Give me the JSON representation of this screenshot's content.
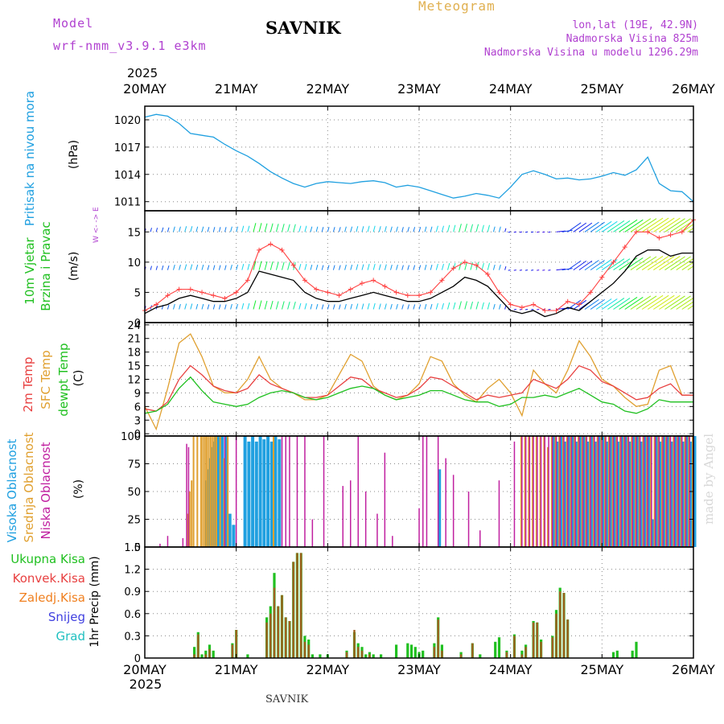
{
  "header": {
    "model_label": "Model",
    "model_name": "wrf-nmm_v3.9.1 e3km",
    "station": "SAVNIK",
    "product": "Meteogram",
    "coords": "lon,lat (19E, 42.9N)",
    "elevation": "Nadmorska Visina 825m",
    "model_elevation": "Nadmorska Visina u modelu 1296.29m",
    "year": "2025",
    "watermark": "made by Angel",
    "footer_station": "SAVNIK"
  },
  "time_axis": {
    "labels": [
      "20MAY",
      "21MAY",
      "22MAY",
      "23MAY",
      "24MAY",
      "25MAY",
      "26MAY"
    ],
    "year_bottom": "2025"
  },
  "colors": {
    "pressure": "#20a0e0",
    "wind_speed": "#000000",
    "gust": "#ff4040",
    "temp2m": "#e84040",
    "sfc_temp": "#e0a030",
    "dewpoint": "#20c020",
    "high_cloud": "#20a0e0",
    "mid_cloud": "#e0a030",
    "low_cloud": "#c020a0",
    "total_precip": "#20c020",
    "conv_precip": "#e84040",
    "frz_precip": "#f08020",
    "snow": "#4040e0",
    "hail": "#20c0c0"
  },
  "chart_data": [
    {
      "type": "line",
      "name": "pressure",
      "title": "Pritisak na nivou mora",
      "ylabel": "(hPa)",
      "ylim": [
        1010,
        1021.5
      ],
      "yticks": [
        1011,
        1014,
        1017,
        1020
      ],
      "hours": [
        0,
        3,
        6,
        9,
        12,
        15,
        18,
        21,
        24,
        27,
        30,
        33,
        36,
        39,
        42,
        45,
        48,
        51,
        54,
        57,
        60,
        63,
        66,
        69,
        72,
        75,
        78,
        81,
        84,
        87,
        90,
        93,
        96,
        99,
        102,
        105,
        108,
        111,
        114,
        117,
        120,
        123,
        126,
        129,
        132,
        135,
        138,
        141,
        144
      ],
      "series": [
        {
          "name": "Pritisak",
          "values": [
            1020.3,
            1020.6,
            1020.4,
            1019.6,
            1018.5,
            1018.3,
            1018.1,
            1017.3,
            1016.6,
            1016.0,
            1015.2,
            1014.3,
            1013.6,
            1013.0,
            1012.6,
            1013.0,
            1013.2,
            1013.1,
            1013.0,
            1013.2,
            1013.3,
            1013.1,
            1012.6,
            1012.8,
            1012.6,
            1012.2,
            1011.8,
            1011.4,
            1011.6,
            1011.9,
            1011.7,
            1011.4,
            1012.6,
            1014.0,
            1014.4,
            1014.0,
            1013.5,
            1013.6,
            1013.4,
            1013.5,
            1013.8,
            1014.2,
            1013.9,
            1014.5,
            1015.9,
            1013.0,
            1012.2,
            1012.1,
            1011.0
          ]
        }
      ]
    },
    {
      "type": "line",
      "name": "wind",
      "title": "10m Vjetar Brzina i Pravac",
      "ylabel": "(m/s)",
      "compass": "W <- -> E",
      "ylim": [
        0,
        18.5
      ],
      "yticks": [
        0,
        5,
        10,
        15
      ],
      "hours": [
        0,
        3,
        6,
        9,
        12,
        15,
        18,
        21,
        24,
        27,
        30,
        33,
        36,
        39,
        42,
        45,
        48,
        51,
        54,
        57,
        60,
        63,
        66,
        69,
        72,
        75,
        78,
        81,
        84,
        87,
        90,
        93,
        96,
        99,
        102,
        105,
        108,
        111,
        114,
        117,
        120,
        123,
        126,
        129,
        132,
        135,
        138,
        141,
        144
      ],
      "series": [
        {
          "name": "Brzina",
          "values": [
            1.5,
            2.5,
            3.0,
            4.0,
            4.5,
            4.0,
            3.5,
            3.5,
            4.0,
            5.0,
            8.5,
            8.0,
            7.5,
            7.0,
            5.0,
            4.0,
            3.5,
            3.5,
            4.0,
            4.5,
            5.0,
            4.5,
            4.0,
            3.5,
            3.5,
            4.0,
            5.0,
            6.0,
            7.5,
            7.0,
            6.0,
            4.0,
            2.0,
            1.5,
            2.0,
            1.0,
            1.5,
            2.5,
            2.0,
            3.5,
            5.0,
            6.5,
            8.5,
            11.0,
            12.0,
            12.0,
            11.0,
            11.5,
            11.5
          ]
        },
        {
          "name": "Udar",
          "values": [
            2.0,
            3.0,
            4.5,
            5.5,
            5.5,
            5.0,
            4.5,
            4.0,
            5.0,
            7.0,
            12.0,
            13.0,
            12.0,
            9.5,
            7.0,
            5.5,
            5.0,
            4.5,
            5.5,
            6.5,
            7.0,
            6.0,
            5.0,
            4.5,
            4.5,
            5.0,
            7.0,
            9.0,
            10.0,
            9.5,
            8.0,
            5.0,
            3.0,
            2.5,
            3.0,
            2.0,
            2.0,
            3.5,
            3.0,
            5.0,
            7.5,
            10.0,
            12.5,
            15.0,
            15.0,
            14.0,
            14.5,
            15.0,
            17.0
          ]
        }
      ]
    },
    {
      "type": "line",
      "name": "temperature",
      "title": "2m Temp / SFC Temp / dewpt Temp",
      "ylabel": "(C)",
      "ylim": [
        -0.5,
        24.5
      ],
      "yticks": [
        0,
        3,
        6,
        9,
        12,
        15,
        18,
        21,
        24
      ],
      "hours": [
        0,
        3,
        6,
        9,
        12,
        15,
        18,
        21,
        24,
        27,
        30,
        33,
        36,
        39,
        42,
        45,
        48,
        51,
        54,
        57,
        60,
        63,
        66,
        69,
        72,
        75,
        78,
        81,
        84,
        87,
        90,
        93,
        96,
        99,
        102,
        105,
        108,
        111,
        114,
        117,
        120,
        123,
        126,
        129,
        132,
        135,
        138,
        141,
        144
      ],
      "series": [
        {
          "name": "2m Temp",
          "values": [
            5.5,
            5.0,
            7.0,
            12.0,
            15.0,
            13.0,
            10.5,
            9.5,
            9.0,
            10.0,
            13.0,
            11.0,
            10.0,
            9.0,
            8.0,
            8.0,
            8.5,
            10.5,
            12.5,
            12.0,
            10.0,
            9.0,
            8.0,
            8.5,
            10.0,
            12.5,
            12.0,
            10.5,
            9.0,
            7.5,
            8.5,
            8.0,
            8.5,
            9.0,
            12.0,
            11.0,
            10.0,
            12.0,
            15.0,
            14.0,
            11.5,
            10.5,
            9.0,
            7.5,
            8.0,
            10.0,
            11.0,
            8.5,
            8.5
          ]
        },
        {
          "name": "SFC Temp",
          "values": [
            6.0,
            1.0,
            10.0,
            20.0,
            22.0,
            17.0,
            10.5,
            9.0,
            9.0,
            12.0,
            17.0,
            12.0,
            10.0,
            9.0,
            7.5,
            7.5,
            8.5,
            13.0,
            17.5,
            16.0,
            10.5,
            8.5,
            7.5,
            8.5,
            11.0,
            17.0,
            16.0,
            11.0,
            8.5,
            7.0,
            10.0,
            12.0,
            9.0,
            4.0,
            14.0,
            11.0,
            9.0,
            14.0,
            20.5,
            17.0,
            12.0,
            10.5,
            8.0,
            6.0,
            6.5,
            14.0,
            15.0,
            8.5,
            8.5
          ]
        },
        {
          "name": "dewpt Temp",
          "values": [
            4.5,
            5.0,
            6.5,
            10.0,
            12.5,
            9.5,
            7.0,
            6.5,
            6.0,
            6.5,
            8.0,
            9.0,
            9.5,
            9.0,
            8.0,
            7.5,
            8.0,
            9.0,
            10.0,
            10.5,
            10.0,
            8.5,
            7.5,
            8.0,
            8.5,
            9.5,
            9.5,
            8.5,
            7.5,
            7.0,
            7.0,
            6.0,
            6.5,
            8.0,
            8.0,
            8.5,
            8.0,
            9.0,
            10.0,
            8.5,
            7.0,
            6.5,
            5.0,
            4.5,
            5.5,
            7.5,
            7.0,
            7.0,
            7.0
          ]
        }
      ]
    },
    {
      "type": "bar",
      "name": "clouds",
      "title": "Visoka / Srednja / Niska Oblacnost",
      "ylabel": "(%)",
      "ylim": [
        0,
        100
      ],
      "yticks": [
        0,
        25,
        50,
        75,
        100
      ],
      "hours": [
        4,
        6,
        10,
        11,
        11.5,
        12,
        12.5,
        13,
        14,
        15,
        15.5,
        16,
        16.5,
        17,
        17.5,
        18,
        18.5,
        19,
        20,
        21,
        22,
        23,
        24,
        26,
        27,
        28,
        29,
        30,
        31,
        32,
        33,
        34,
        35,
        36,
        37,
        38,
        40,
        42,
        44,
        47,
        52,
        54,
        56,
        58,
        61,
        63,
        65,
        72,
        73,
        74,
        77,
        79,
        81,
        85,
        88,
        93,
        97,
        99,
        100,
        101,
        102,
        103,
        104,
        105,
        106,
        107,
        108,
        109,
        110,
        111,
        112,
        113,
        114,
        115,
        116,
        117,
        118,
        119,
        120,
        121,
        122,
        123,
        124,
        125,
        126,
        127,
        128,
        129,
        130,
        131,
        132,
        133,
        134,
        135,
        136,
        137,
        138,
        139,
        140,
        141,
        142,
        143,
        144
      ],
      "series": [
        {
          "name": "Visoka",
          "values": [
            0,
            0,
            0,
            0,
            0,
            0,
            0,
            0,
            0,
            0,
            0,
            60,
            70,
            80,
            90,
            95,
            100,
            100,
            100,
            100,
            30,
            20,
            0,
            100,
            95,
            100,
            95,
            100,
            97,
            100,
            95,
            100,
            97,
            0,
            0,
            0,
            0,
            0,
            0,
            0,
            0,
            0,
            0,
            0,
            0,
            0,
            0,
            0,
            0,
            0,
            70,
            0,
            0,
            0,
            0,
            0,
            0,
            0,
            0,
            0,
            0,
            0,
            0,
            0,
            0,
            100,
            95,
            100,
            95,
            100,
            100,
            95,
            100,
            100,
            95,
            100,
            95,
            100,
            100,
            95,
            100,
            100,
            95,
            100,
            100,
            95,
            100,
            100,
            95,
            100,
            100,
            25,
            100,
            95,
            100,
            100,
            95,
            100,
            100,
            95,
            100,
            95,
            100
          ]
        },
        {
          "name": "Srednja",
          "values": [
            0,
            0,
            0,
            0,
            30,
            50,
            60,
            100,
            100,
            100,
            100,
            100,
            100,
            100,
            100,
            100,
            100,
            100,
            100,
            80,
            100,
            0,
            0,
            0,
            0,
            0,
            0,
            0,
            0,
            0,
            0,
            100,
            0,
            0,
            0,
            0,
            0,
            0,
            0,
            0,
            0,
            0,
            0,
            0,
            0,
            0,
            0,
            0,
            0,
            0,
            0,
            0,
            0,
            0,
            0,
            0,
            0,
            100,
            100,
            100,
            100,
            100,
            100,
            100,
            90,
            100,
            100,
            100,
            100,
            100,
            100,
            100,
            100,
            100,
            100,
            100,
            100,
            100,
            100,
            100,
            100,
            100,
            100,
            100,
            100,
            100,
            100,
            100,
            100,
            100,
            100,
            100,
            100,
            100,
            100,
            100,
            100,
            100,
            100,
            100,
            100,
            100,
            100
          ]
        },
        {
          "name": "Niska",
          "values": [
            3,
            10,
            8,
            93,
            90,
            0,
            0,
            0,
            0,
            0,
            0,
            0,
            0,
            0,
            0,
            0,
            0,
            0,
            0,
            100,
            0,
            0,
            100,
            0,
            0,
            0,
            0,
            0,
            0,
            0,
            0,
            0,
            0,
            100,
            100,
            100,
            100,
            100,
            25,
            100,
            55,
            60,
            100,
            50,
            30,
            85,
            10,
            35,
            100,
            100,
            100,
            80,
            65,
            50,
            15,
            60,
            95,
            100,
            100,
            100,
            100,
            100,
            100,
            100,
            100,
            100,
            100,
            100,
            100,
            100,
            100,
            100,
            100,
            100,
            100,
            100,
            100,
            100,
            100,
            100,
            100,
            100,
            100,
            100,
            100,
            100,
            100,
            100,
            100,
            100,
            100,
            100,
            100,
            100,
            100,
            100,
            100,
            100,
            100,
            100,
            100,
            100,
            100
          ]
        }
      ]
    },
    {
      "type": "bar",
      "name": "precip",
      "title": "1hr Precip",
      "ylabel": "(mm)",
      "ylim": [
        0,
        1.5
      ],
      "yticks": [
        0,
        0.3,
        0.6,
        0.9,
        1.2,
        1.5
      ],
      "legend": [
        "Ukupna Kisa",
        "Konvek.Kisa",
        "Zaledj.Kisa",
        "Snijeg",
        "Grad"
      ],
      "hours": [
        13,
        14,
        15,
        16,
        17,
        18,
        23,
        24,
        27,
        32,
        33,
        34,
        35,
        36,
        37,
        38,
        39,
        40,
        41,
        42,
        43,
        44,
        46,
        48,
        53,
        55,
        56,
        57,
        58,
        59,
        60,
        62,
        66,
        69,
        70,
        71,
        72,
        73,
        76,
        77,
        78,
        83,
        86,
        88,
        92,
        93,
        95,
        97,
        99,
        100,
        102,
        103,
        104,
        107,
        108,
        109,
        110,
        111,
        123,
        124,
        128,
        129
      ],
      "series": [
        {
          "name": "Ukupna Kisa",
          "values": [
            0.15,
            0.35,
            0.05,
            0.1,
            0.18,
            0.1,
            0.2,
            0.38,
            0.05,
            0.55,
            0.7,
            1.15,
            0.7,
            0.85,
            0.55,
            0.5,
            1.3,
            1.42,
            1.42,
            0.3,
            0.25,
            0.05,
            0.05,
            0.05,
            0.1,
            0.35,
            0.2,
            0.15,
            0.05,
            0.08,
            0.05,
            0.05,
            0.18,
            0.2,
            0.18,
            0.15,
            0.08,
            0.1,
            0.2,
            0.55,
            0.18,
            0.08,
            0.2,
            0.05,
            0.22,
            0.28,
            0.1,
            0.32,
            0.1,
            0.18,
            0.5,
            0.48,
            0.25,
            0.3,
            0.65,
            0.95,
            0.88,
            0.52,
            0.08,
            0.1,
            0.1,
            0.22
          ]
        },
        {
          "name": "Konvek.Kisa",
          "values": [
            0.05,
            0.32,
            0.0,
            0.05,
            0.12,
            0.0,
            0.18,
            0.38,
            0.0,
            0.48,
            0.6,
            0.95,
            0.7,
            0.85,
            0.55,
            0.5,
            1.3,
            1.42,
            1.42,
            0.22,
            0.18,
            0.0,
            0.0,
            0.0,
            0.08,
            0.38,
            0.15,
            0.1,
            0.0,
            0.05,
            0.0,
            0.0,
            0.0,
            0.0,
            0.0,
            0.0,
            0.0,
            0.0,
            0.15,
            0.52,
            0.1,
            0.05,
            0.2,
            0.0,
            0.0,
            0.0,
            0.08,
            0.3,
            0.05,
            0.15,
            0.48,
            0.48,
            0.22,
            0.28,
            0.6,
            0.9,
            0.88,
            0.52,
            0.0,
            0.0,
            0.0,
            0.0
          ]
        }
      ]
    }
  ]
}
